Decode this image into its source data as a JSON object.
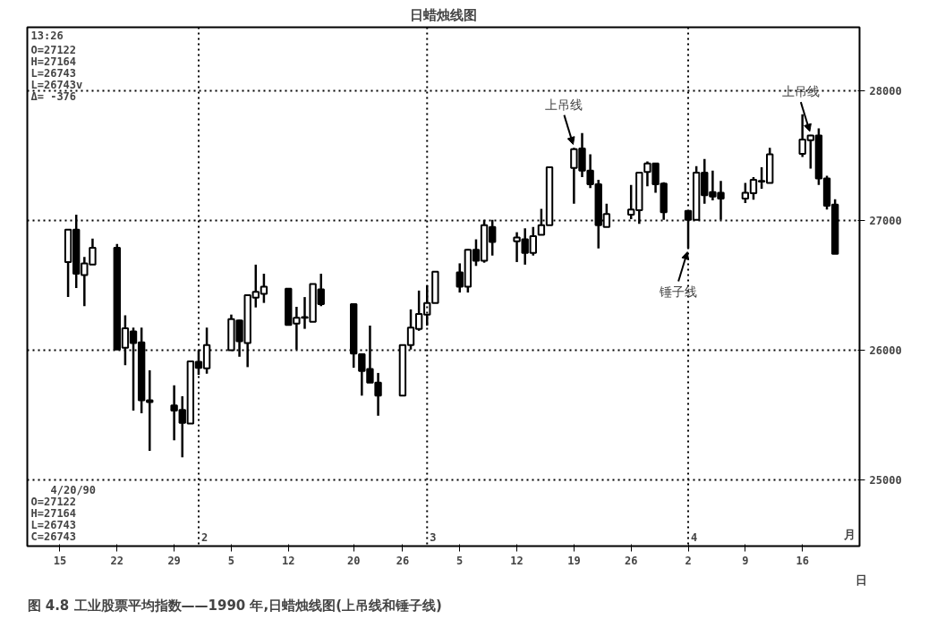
{
  "chart_data": {
    "type": "candlestick",
    "title": "日蜡烛线图",
    "x": [
      "1990-01-16",
      "1990-01-17",
      "1990-01-18",
      "1990-01-19",
      "1990-01-22",
      "1990-01-23",
      "1990-01-24",
      "1990-01-25",
      "1990-01-26",
      "1990-01-29",
      "1990-01-30",
      "1990-01-31",
      "1990-02-01",
      "1990-02-02",
      "1990-02-05",
      "1990-02-06",
      "1990-02-07",
      "1990-02-08",
      "1990-02-09",
      "1990-02-12",
      "1990-02-13",
      "1990-02-14",
      "1990-02-15",
      "1990-02-16",
      "1990-02-20",
      "1990-02-21",
      "1990-02-22",
      "1990-02-23",
      "1990-02-26",
      "1990-02-27",
      "1990-02-28",
      "1990-03-01",
      "1990-03-02",
      "1990-03-05",
      "1990-03-06",
      "1990-03-07",
      "1990-03-08",
      "1990-03-09",
      "1990-03-12",
      "1990-03-13",
      "1990-03-14",
      "1990-03-15",
      "1990-03-16",
      "1990-03-19",
      "1990-03-20",
      "1990-03-21",
      "1990-03-22",
      "1990-03-23",
      "1990-03-26",
      "1990-03-27",
      "1990-03-28",
      "1990-03-29",
      "1990-03-30",
      "1990-04-02",
      "1990-04-03",
      "1990-04-04",
      "1990-04-05",
      "1990-04-06",
      "1990-04-09",
      "1990-04-10",
      "1990-04-11",
      "1990-04-12",
      "1990-04-16",
      "1990-04-17",
      "1990-04-18",
      "1990-04-19",
      "1990-04-20"
    ],
    "ohlc": [
      [
        26680,
        26930,
        26410,
        26930
      ],
      [
        26930,
        27045,
        26480,
        26590
      ],
      [
        26580,
        26720,
        26340,
        26670
      ],
      [
        26660,
        26860,
        26660,
        26790
      ],
      [
        26790,
        26820,
        26005,
        26005
      ],
      [
        26020,
        26270,
        25885,
        26170
      ],
      [
        26145,
        26175,
        25535,
        26055
      ],
      [
        26060,
        26175,
        25515,
        25615
      ],
      [
        25615,
        25845,
        25225,
        25600
      ],
      [
        25575,
        25730,
        25305,
        25535
      ],
      [
        25540,
        25645,
        25175,
        25440
      ],
      [
        25435,
        25915,
        25435,
        25915
      ],
      [
        25910,
        26000,
        25810,
        25865
      ],
      [
        25860,
        26175,
        25820,
        26040
      ],
      [
        26000,
        26275,
        26000,
        26240
      ],
      [
        26230,
        26235,
        25950,
        26070
      ],
      [
        26055,
        26425,
        25870,
        26425
      ],
      [
        26405,
        26660,
        26330,
        26450
      ],
      [
        26435,
        26590,
        26365,
        26490
      ],
      [
        26475,
        26475,
        26195,
        26195
      ],
      [
        26205,
        26335,
        26005,
        26250
      ],
      [
        26250,
        26410,
        26165,
        26255
      ],
      [
        26220,
        26510,
        26220,
        26510
      ],
      [
        26470,
        26590,
        26340,
        26355
      ],
      [
        26355,
        26355,
        25865,
        25975
      ],
      [
        25970,
        25970,
        25650,
        25840
      ],
      [
        25855,
        26190,
        25750,
        25750
      ],
      [
        25750,
        25825,
        25495,
        25650
      ],
      [
        25650,
        26040,
        25650,
        26040
      ],
      [
        26040,
        26315,
        26005,
        26175
      ],
      [
        26165,
        26460,
        26150,
        26280
      ],
      [
        26275,
        26500,
        26190,
        26365
      ],
      [
        26365,
        26610,
        26365,
        26605
      ],
      [
        26600,
        26670,
        26445,
        26490
      ],
      [
        26490,
        26780,
        26445,
        26775
      ],
      [
        26775,
        26855,
        26650,
        26690
      ],
      [
        26690,
        27005,
        26675,
        26965
      ],
      [
        26950,
        27005,
        26730,
        26835
      ],
      [
        26840,
        26910,
        26680,
        26870
      ],
      [
        26855,
        26940,
        26660,
        26750
      ],
      [
        26750,
        26950,
        26730,
        26880
      ],
      [
        26890,
        27090,
        26890,
        26965
      ],
      [
        26965,
        27410,
        26965,
        27410
      ],
      [
        27405,
        27560,
        27130,
        27550
      ],
      [
        27555,
        27675,
        27335,
        27385
      ],
      [
        27385,
        27510,
        27250,
        27280
      ],
      [
        27280,
        27315,
        26785,
        26965
      ],
      [
        26950,
        27130,
        26950,
        27050
      ],
      [
        27045,
        27275,
        27010,
        27085
      ],
      [
        27080,
        27370,
        26975,
        27370
      ],
      [
        27375,
        27455,
        27265,
        27440
      ],
      [
        27440,
        27445,
        27215,
        27280
      ],
      [
        27285,
        27295,
        27005,
        27065
      ],
      [
        27075,
        27075,
        26785,
        27005
      ],
      [
        27005,
        27420,
        27005,
        27370
      ],
      [
        27370,
        27475,
        27130,
        27195
      ],
      [
        27220,
        27385,
        27155,
        27185
      ],
      [
        27215,
        27305,
        27005,
        27170
      ],
      [
        27170,
        27290,
        27135,
        27215
      ],
      [
        27210,
        27335,
        27160,
        27315
      ],
      [
        27300,
        27410,
        27245,
        27305
      ],
      [
        27290,
        27560,
        27290,
        27510
      ],
      [
        27515,
        27820,
        27490,
        27625
      ],
      [
        27620,
        27660,
        27400,
        27655
      ],
      [
        27655,
        27710,
        27275,
        27325
      ],
      [
        27325,
        27345,
        27085,
        27115
      ],
      [
        27122,
        27164,
        26743,
        26743
      ]
    ],
    "xlim": [
      "1990-01-11",
      "1990-04-23"
    ],
    "xticks": [
      {
        "value": "1990-01-15",
        "label": "15"
      },
      {
        "value": "1990-01-22",
        "label": "22"
      },
      {
        "value": "1990-01-29",
        "label": "29"
      },
      {
        "value": "1990-02-05",
        "label": "5"
      },
      {
        "value": "1990-02-12",
        "label": "12"
      },
      {
        "value": "1990-02-20",
        "label": "20"
      },
      {
        "value": "1990-02-26",
        "label": "26"
      },
      {
        "value": "1990-03-05",
        "label": "5"
      },
      {
        "value": "1990-03-12",
        "label": "12"
      },
      {
        "value": "1990-03-19",
        "label": "19"
      },
      {
        "value": "1990-03-26",
        "label": "26"
      },
      {
        "value": "1990-04-02",
        "label": "2"
      },
      {
        "value": "1990-04-09",
        "label": "9"
      },
      {
        "value": "1990-04-16",
        "label": "16"
      }
    ],
    "ylim": [
      24490,
      28490
    ],
    "yticks": [
      25000,
      26000,
      27000,
      28000
    ],
    "grid": "y",
    "ref_lines": [
      {
        "axis": "x",
        "value": "1990-02-01",
        "label": "2",
        "line_style": "dotted"
      },
      {
        "axis": "x",
        "value": "1990-03-01",
        "label": "3",
        "line_style": "dotted"
      },
      {
        "axis": "x",
        "value": "1990-04-02",
        "label": "4",
        "line_style": "dotted"
      }
    ],
    "annotations": [
      {
        "text": "上吊线",
        "x": "1990-03-19",
        "y": 27560
      },
      {
        "text": "上吊线",
        "x": "1990-04-17",
        "y": 27660
      },
      {
        "text": "锤子线",
        "x": "1990-04-02",
        "y": 26785
      },
      "13:26",
      "O=27122\nH=27164\nL=26743\nL=26743v\nΔ= -376",
      "4/20/90\nO=27122\nH=27164\nL=26743\nC=26743",
      "月",
      "日",
      "图 4.8   工业股票平均指数——1990 年,日蜡烛线图(上吊线和锤子线)"
    ]
  }
}
